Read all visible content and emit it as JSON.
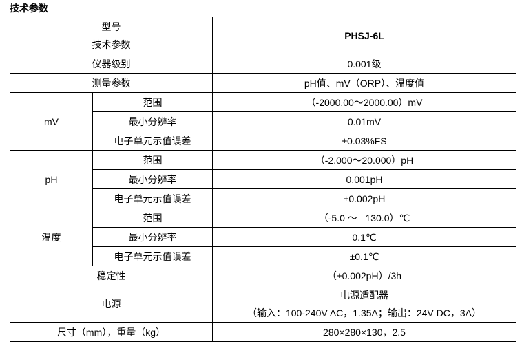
{
  "title": "技术参数",
  "header": {
    "model_label": "型号",
    "params_label": "技术参数",
    "model": "PHSJ-6L"
  },
  "rows": {
    "grade": {
      "label": "仪器级别",
      "value": "0.001级"
    },
    "measure": {
      "label": "测量参数",
      "value": "pH值、mV（ORP）、温度值"
    },
    "stability": {
      "label": "稳定性",
      "value": "（±0.002pH）/3h"
    },
    "power": {
      "label": "电源",
      "value1": "电源适配器",
      "value2": "（输入：100-240V AC，1.35A；输出：24V DC，3A）"
    },
    "size": {
      "label": "尺寸（mm），重量（kg）",
      "value": "280×280×130，2.5"
    }
  },
  "groups": [
    {
      "name": "mV",
      "items": [
        {
          "label": "范围",
          "value": "（-2000.00～2000.00）mV"
        },
        {
          "label": "最小分辨率",
          "value": "0.01mV"
        },
        {
          "label": "电子单元示值误差",
          "value": "±0.03%FS"
        }
      ]
    },
    {
      "name": "pH",
      "items": [
        {
          "label": "范围",
          "value": "（-2.000～20.000）pH"
        },
        {
          "label": "最小分辨率",
          "value": "0.001pH"
        },
        {
          "label": "电子单元示值误差",
          "value": "±0.002pH"
        }
      ]
    },
    {
      "name": "温度",
      "items": [
        {
          "label": "范围",
          "value": "（-5.0 ～   130.0）℃"
        },
        {
          "label": "最小分辨率",
          "value": "0.1℃"
        },
        {
          "label": "电子单元示值误差",
          "value": "±0.1℃"
        }
      ]
    }
  ]
}
